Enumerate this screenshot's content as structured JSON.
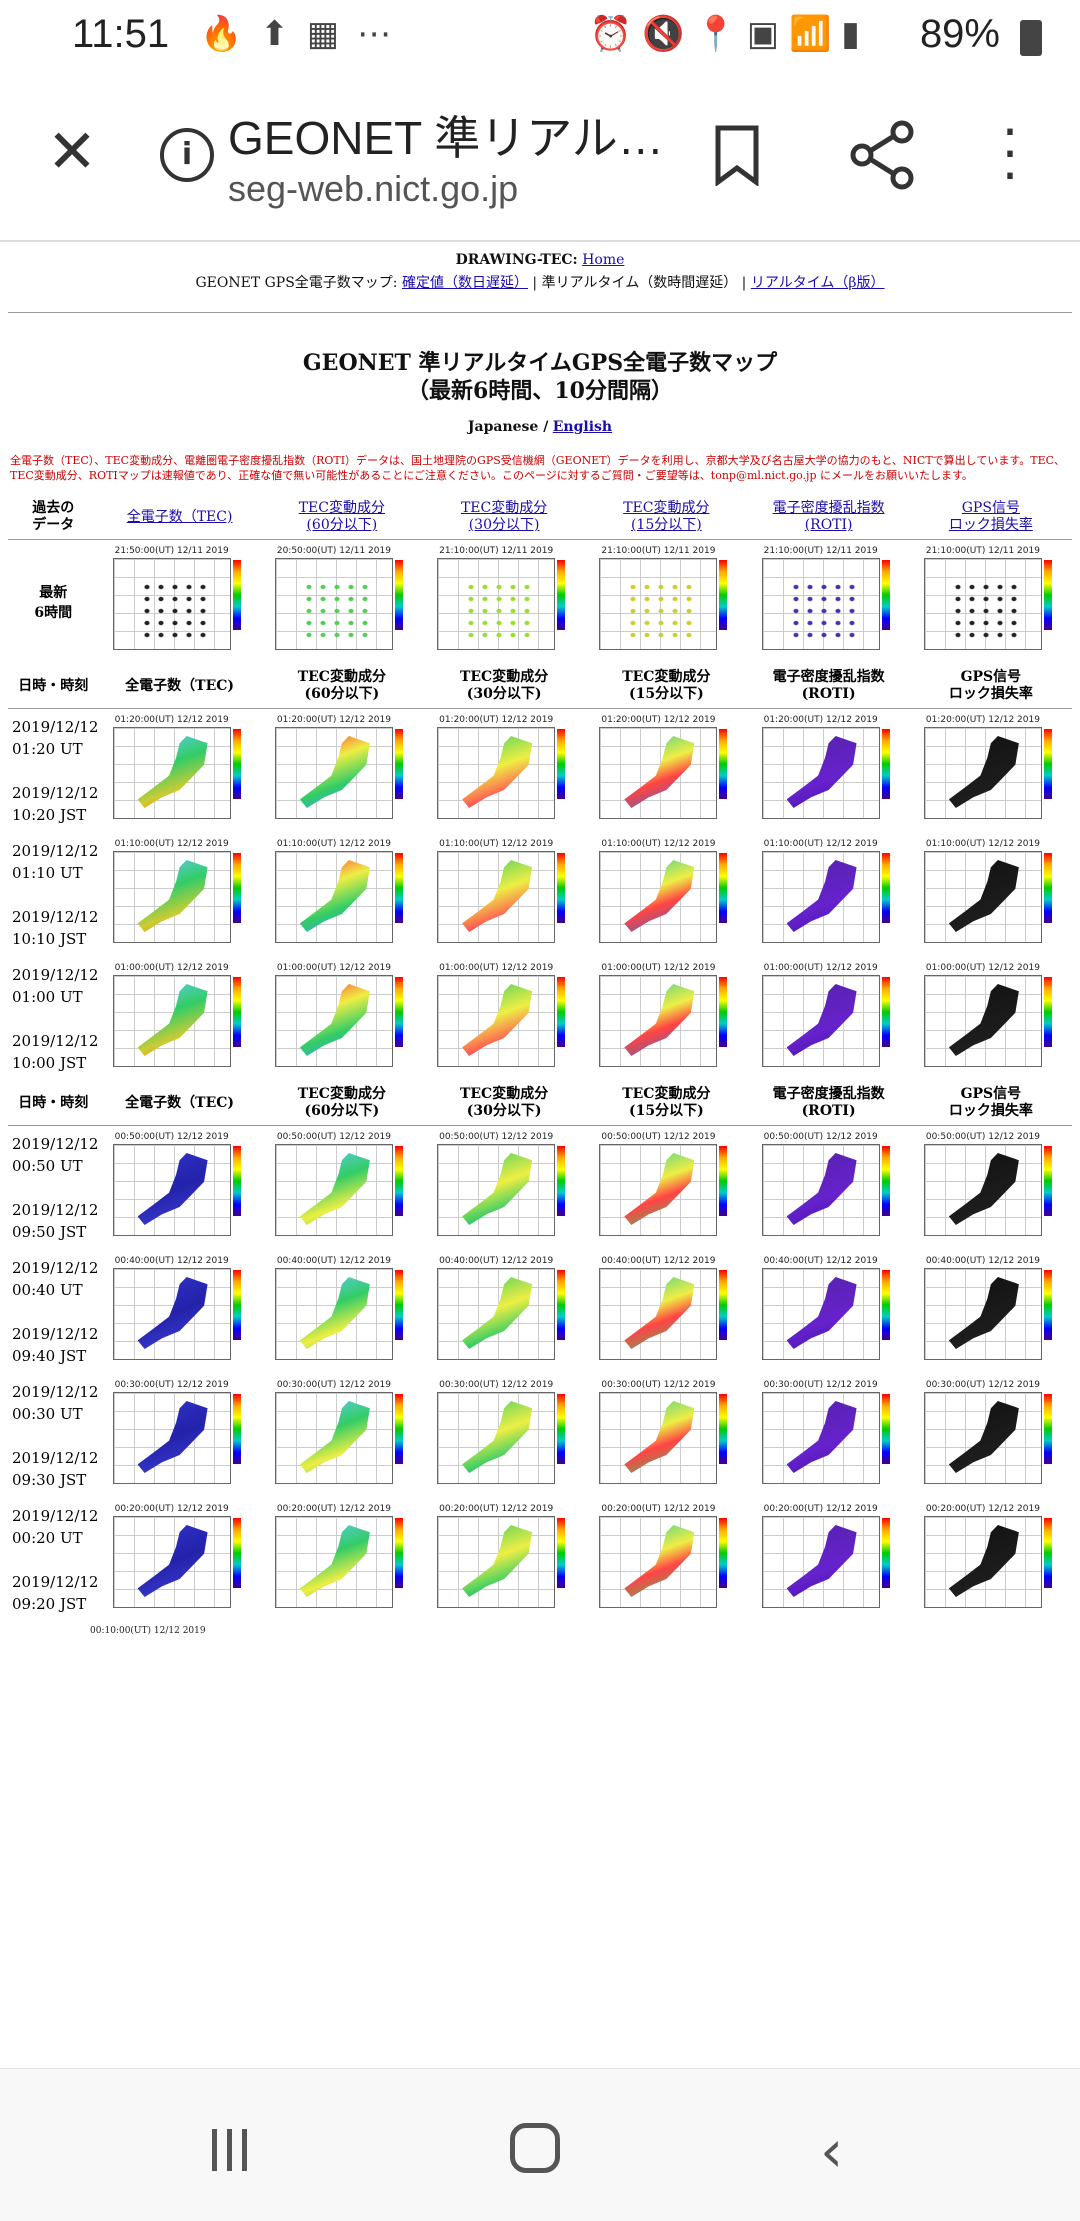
{
  "status": {
    "time": "11:51",
    "left_icons": [
      "fire-icon",
      "upload-icon",
      "calendar-icon",
      "more-dots"
    ],
    "right_icons": [
      "alarm-icon",
      "vibrate-icon",
      "location-icon",
      "volte-icon",
      "wifi-icon",
      "signal-icon"
    ],
    "battery": "89%"
  },
  "browser": {
    "title": "GEONET 準リアル…",
    "url": "seg-web.nict.go.jp"
  },
  "page": {
    "header_title": "DRAWING-TEC:",
    "header_home": "Home",
    "nav_prefix": "GEONET GPS全電子数マップ:",
    "nav_link1": "確定値（数日遅延）",
    "nav_current": "準リアルタイム（数時間遅延）",
    "nav_link2": "リアルタイム（β版）",
    "main_title_1": "GEONET 準リアルタイムGPS全電子数マップ",
    "main_title_2": "（最新6時間、10分間隔）",
    "lang_japanese": "Japanese /",
    "lang_english": "English",
    "notice": "全電子数（TEC）、TEC変動成分、電離圏電子密度擾乱指数（ROTI）データは、国土地理院のGPS受信機網（GEONET）データを利用し、京都大学及び名古屋大学の協力のもと、NICTで算出しています。TEC、TEC変動成分、ROTIマップは速報値であり、正確な値で無い可能性があることにご注意ください。このページに対するご質問・ご要望等は、tonp@ml.nict.go.jp にメールをお願いいたします。",
    "past_header": {
      "label_1": "過去の",
      "label_2": "データ",
      "col1": "全電子数（TEC)",
      "col2a": "TEC変動成分",
      "col2b": "(60分以下)",
      "col3a": "TEC変動成分",
      "col3b": "(30分以下)",
      "col4a": "TEC変動成分",
      "col4b": "(15分以下)",
      "col5a": "電子密度擾乱指数",
      "col5b": "(ROTI)",
      "col6a": "GPS信号",
      "col6b": "ロック損失率"
    },
    "latest_label_1": "最新",
    "latest_label_2": "6時間",
    "latest_caps": [
      "21:50:00(UT) 12/11 2019",
      "20:50:00(UT) 12/11 2019",
      "21:10:00(UT) 12/11 2019",
      "21:10:00(UT) 12/11 2019",
      "21:10:00(UT) 12/11 2019",
      "21:10:00(UT) 12/11 2019"
    ],
    "table_header": {
      "label": "日時・時刻",
      "col1": "全電子数（TEC)",
      "col2a": "TEC変動成分",
      "col2b": "(60分以下)",
      "col3a": "TEC変動成分",
      "col3b": "(30分以下)",
      "col4a": "TEC変動成分",
      "col4b": "(15分以下)",
      "col5a": "電子密度擾乱指数",
      "col5b": "(ROTI)",
      "col6a": "GPS信号",
      "col6b": "ロック損失率"
    },
    "rows": [
      {
        "date": "2019/12/12",
        "ut": "01:20 UT",
        "jst": "2019/12/12",
        "jst_time": "10:20 JST",
        "cap": "01:20:00(UT) 12/12 2019"
      },
      {
        "date": "2019/12/12",
        "ut": "01:10 UT",
        "jst": "2019/12/12",
        "jst_time": "10:10 JST",
        "cap": "01:10:00(UT) 12/12 2019"
      },
      {
        "date": "2019/12/12",
        "ut": "01:00 UT",
        "jst": "2019/12/12",
        "jst_time": "10:00 JST",
        "cap": "01:00:00(UT) 12/12 2019"
      }
    ],
    "rows2": [
      {
        "date": "2019/12/12",
        "ut": "00:50 UT",
        "jst": "2019/12/12",
        "jst_time": "09:50 JST",
        "cap": "00:50:00(UT) 12/12 2019"
      },
      {
        "date": "2019/12/12",
        "ut": "00:40 UT",
        "jst": "2019/12/12",
        "jst_time": "09:40 JST",
        "cap": "00:40:00(UT) 12/12 2019"
      },
      {
        "date": "2019/12/12",
        "ut": "00:30 UT",
        "jst": "2019/12/12",
        "jst_time": "09:30 JST",
        "cap": "00:30:00(UT) 12/12 2019"
      },
      {
        "date": "2019/12/12",
        "ut": "00:20 UT",
        "jst": "2019/12/12",
        "jst_time": "09:20 JST",
        "cap": "00:20:00(UT) 12/12 2019"
      }
    ],
    "partial_cap": "00:10:00(UT) 12/12 2019"
  },
  "colors": {
    "link": "#1a0dab",
    "notice": "#cc0000"
  }
}
